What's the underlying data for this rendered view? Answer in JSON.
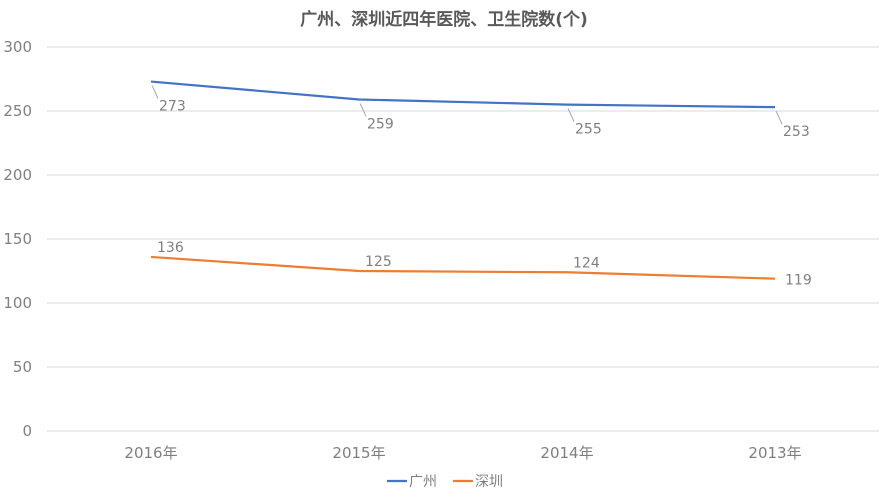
{
  "chart_data": {
    "type": "line",
    "title": "广州、深圳近四年医院、卫生院数(个)",
    "categories": [
      "2016年",
      "2015年",
      "2014年",
      "2013年"
    ],
    "series": [
      {
        "name": "广州",
        "values": [
          273,
          259,
          255,
          253
        ],
        "color": "#4472c4"
      },
      {
        "name": "深圳",
        "values": [
          136,
          125,
          124,
          119
        ],
        "color": "#ed7d31"
      }
    ],
    "yticks": [
      "0",
      "50",
      "100",
      "150",
      "200",
      "250",
      "300"
    ],
    "ylim": [
      0,
      300
    ],
    "grid": true,
    "legend": "bottom-center"
  }
}
